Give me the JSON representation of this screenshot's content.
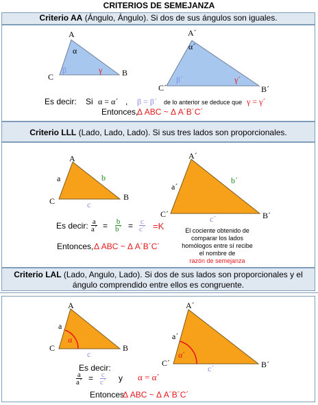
{
  "title": "CRITERIOS DE SEMEJANZA",
  "sections": [
    {
      "name_bold": "Criterio AA",
      "name_rest": " (Ángulo, Ángulo). Si dos de sus ángulos son iguales."
    },
    {
      "name_bold": "Criterio LLL",
      "name_rest": " (Lado, Lado, Lado). Si sus tres lados son proporcionales."
    },
    {
      "name_bold": "Criterio LAL",
      "name_rest": " (Lado, Angulo, Lado). Si dos de sus lados son proporcionales y el ángulo comprendido entre ellos es congruente."
    }
  ],
  "aa": {
    "small": {
      "A": "A",
      "B": "B",
      "C": "C",
      "alpha": "α",
      "beta": "β",
      "gamma": "γ"
    },
    "big": {
      "A": "A´",
      "B": "B´",
      "C": "C´",
      "alpha": "α´",
      "beta": "β´",
      "gamma": "γ´"
    },
    "es_decir": "Es decir:",
    "si": "Si",
    "eq1": "α = α´",
    "comma": ",",
    "eq2": "β = β´",
    "deduce": "de lo anterior se deduce que",
    "eq3": "γ = γ´",
    "entonces": "Entonces,",
    "rel": "Δ ABC  ~ Δ A´B´C´"
  },
  "lll": {
    "small": {
      "A": "A",
      "B": "B",
      "C": "C",
      "a": "a",
      "b": "b",
      "c": "c"
    },
    "big": {
      "A": "A´",
      "B": "B´",
      "C": "C´",
      "a": "a´",
      "b": "b´",
      "c": "c´"
    },
    "es_decir": "Es decir:",
    "f1n": "a",
    "f1d": "a´",
    "f2n": "b",
    "f2d": "b´",
    "f3n": "c",
    "f3d": "c´",
    "eq": "=",
    "k": "=K",
    "note": "El cociente obtenido de comparar los lados homólogos entre sí recibe el nombre de",
    "note_red": "razón de semejanza",
    "entonces": "Entonces,",
    "rel": "Δ ABC ~ Δ A´B´C´"
  },
  "lal": {
    "small": {
      "A": "A",
      "B": "B",
      "C": "C",
      "a": "a",
      "c": "c",
      "alpha": "α"
    },
    "big": {
      "A": "A´",
      "B": "B´",
      "C": "C´",
      "a": "a´",
      "c": "c´",
      "alpha": "α´"
    },
    "es_decir": "Es decir:",
    "f1n": "a",
    "f1d": "a´",
    "f2n": "c",
    "f2d": "c´",
    "eq": "=",
    "y": "y",
    "eq_alpha": "α = α´",
    "entonces": "Entonces",
    "rel": "Δ ABC ~ Δ A´B´C´"
  },
  "colors": {
    "blue_fill": "#a7c7ef",
    "orange_fill": "#f7a01a",
    "header_bg": "#dfe7f1",
    "red": "#e8161c",
    "green": "#1b8a1b",
    "violet": "#8a8ae6"
  }
}
